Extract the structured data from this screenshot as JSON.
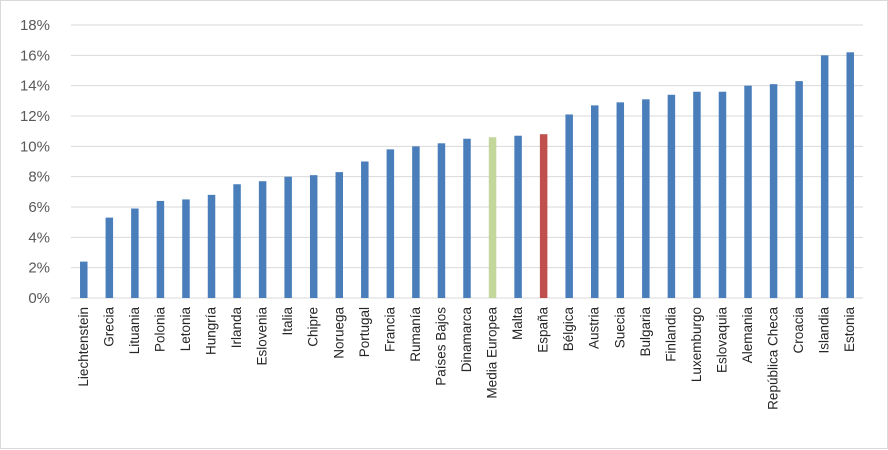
{
  "chart_data": {
    "type": "bar",
    "title": "",
    "xlabel": "",
    "ylabel": "",
    "ylim": [
      0,
      18
    ],
    "y_ticks": [
      "0%",
      "2%",
      "4%",
      "6%",
      "8%",
      "10%",
      "12%",
      "14%",
      "16%",
      "18%"
    ],
    "grid": true,
    "legend": "none",
    "categories": [
      "Liechtenstein",
      "Grecia",
      "Lituania",
      "Polonia",
      "Letonia",
      "Hungría",
      "Irlanda",
      "Eslovenia",
      "Italia",
      "Chipre",
      "Noruega",
      "Portugal",
      "Francia",
      "Rumanía",
      "Países Bajos",
      "Dinamarca",
      "Media Europea",
      "Malta",
      "España",
      "Bélgica",
      "Austria",
      "Suecia",
      "Bulgaria",
      "Finlandia",
      "Luxemburgo",
      "Eslovaquia",
      "Alemania",
      "República Checa",
      "Croacia",
      "Islandia",
      "Estonia"
    ],
    "values": [
      2.4,
      5.3,
      5.9,
      6.4,
      6.5,
      6.8,
      7.5,
      7.7,
      8.0,
      8.1,
      8.3,
      9.0,
      9.8,
      10.0,
      10.2,
      10.5,
      10.6,
      10.7,
      10.8,
      12.1,
      12.7,
      12.9,
      13.1,
      13.4,
      13.6,
      13.6,
      14.0,
      14.1,
      14.3,
      16.0,
      16.2
    ],
    "colors": {
      "default": "#4a7ebb",
      "highlight_media": "#c3d69b",
      "highlight_espana": "#c0504d",
      "grid": "#d9d9d9",
      "axis_text": "#595959"
    },
    "highlights": {
      "Media Europea": "highlight_media",
      "España": "highlight_espana"
    }
  }
}
